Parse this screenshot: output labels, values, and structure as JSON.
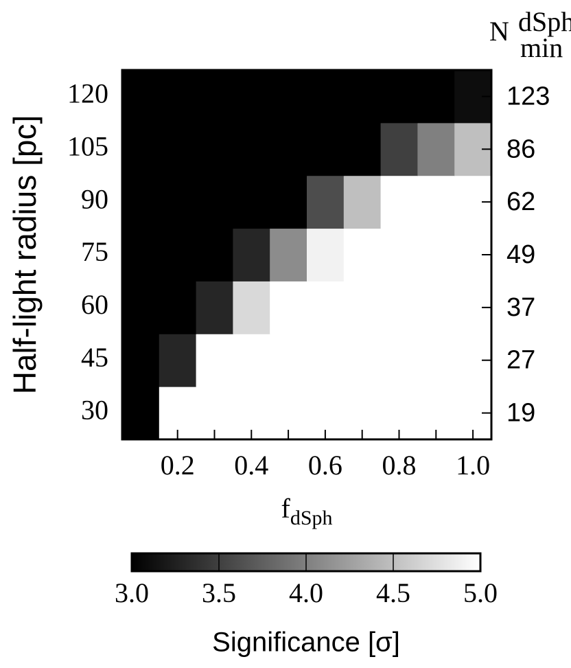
{
  "chart_data": {
    "type": "heatmap",
    "x": [
      0.1,
      0.2,
      0.3,
      0.4,
      0.5,
      0.6,
      0.7,
      0.8,
      0.9,
      1.0
    ],
    "y": [
      30,
      45,
      60,
      75,
      90,
      105,
      120
    ],
    "z": [
      [
        3.0,
        5.0,
        5.0,
        5.0,
        5.0,
        5.0,
        5.0,
        5.0,
        5.0,
        5.0
      ],
      [
        3.0,
        3.3,
        5.0,
        5.0,
        5.0,
        5.0,
        5.0,
        5.0,
        5.0,
        5.0
      ],
      [
        3.0,
        3.0,
        3.3,
        4.7,
        5.0,
        5.0,
        5.0,
        5.0,
        5.0,
        5.0
      ],
      [
        3.0,
        3.0,
        3.0,
        3.3,
        4.1,
        4.9,
        5.0,
        5.0,
        5.0,
        5.0
      ],
      [
        3.0,
        3.0,
        3.0,
        3.0,
        3.0,
        3.6,
        4.5,
        5.0,
        5.0,
        5.0
      ],
      [
        3.0,
        3.0,
        3.0,
        3.0,
        3.0,
        3.0,
        3.0,
        3.5,
        4.0,
        4.5
      ],
      [
        3.0,
        3.0,
        3.0,
        3.0,
        3.0,
        3.0,
        3.0,
        3.0,
        3.0,
        3.1
      ]
    ],
    "xlim": [
      0.05,
      1.05
    ],
    "ylim": [
      22.5,
      127.5
    ],
    "xticks": [
      0.2,
      0.4,
      0.6,
      0.8,
      {
        "value": 1.0,
        "label": "1.0"
      }
    ],
    "xminorticks": [
      0.3,
      0.5,
      0.7,
      0.9
    ],
    "yticks": [
      30,
      45,
      60,
      75,
      90,
      105,
      120
    ],
    "y2labels": [
      19,
      27,
      37,
      49,
      62,
      86,
      123
    ],
    "xlabel": {
      "base": "f",
      "sub": "dSph"
    },
    "ylabel": "Half-light radius [pc]",
    "y2label": {
      "base": "N",
      "sup": "dSph",
      "sub": "min"
    },
    "colorbar": {
      "lim": [
        3.0,
        5.0
      ],
      "ticks": [
        {
          "value": 3.0,
          "label": "3.0"
        },
        3.5,
        {
          "value": 4.0,
          "label": "4.0"
        },
        4.5,
        {
          "value": 5.0,
          "label": "5.0"
        }
      ],
      "label": "Significance [σ]",
      "colors": [
        "#000000",
        "#ffffff"
      ]
    }
  }
}
